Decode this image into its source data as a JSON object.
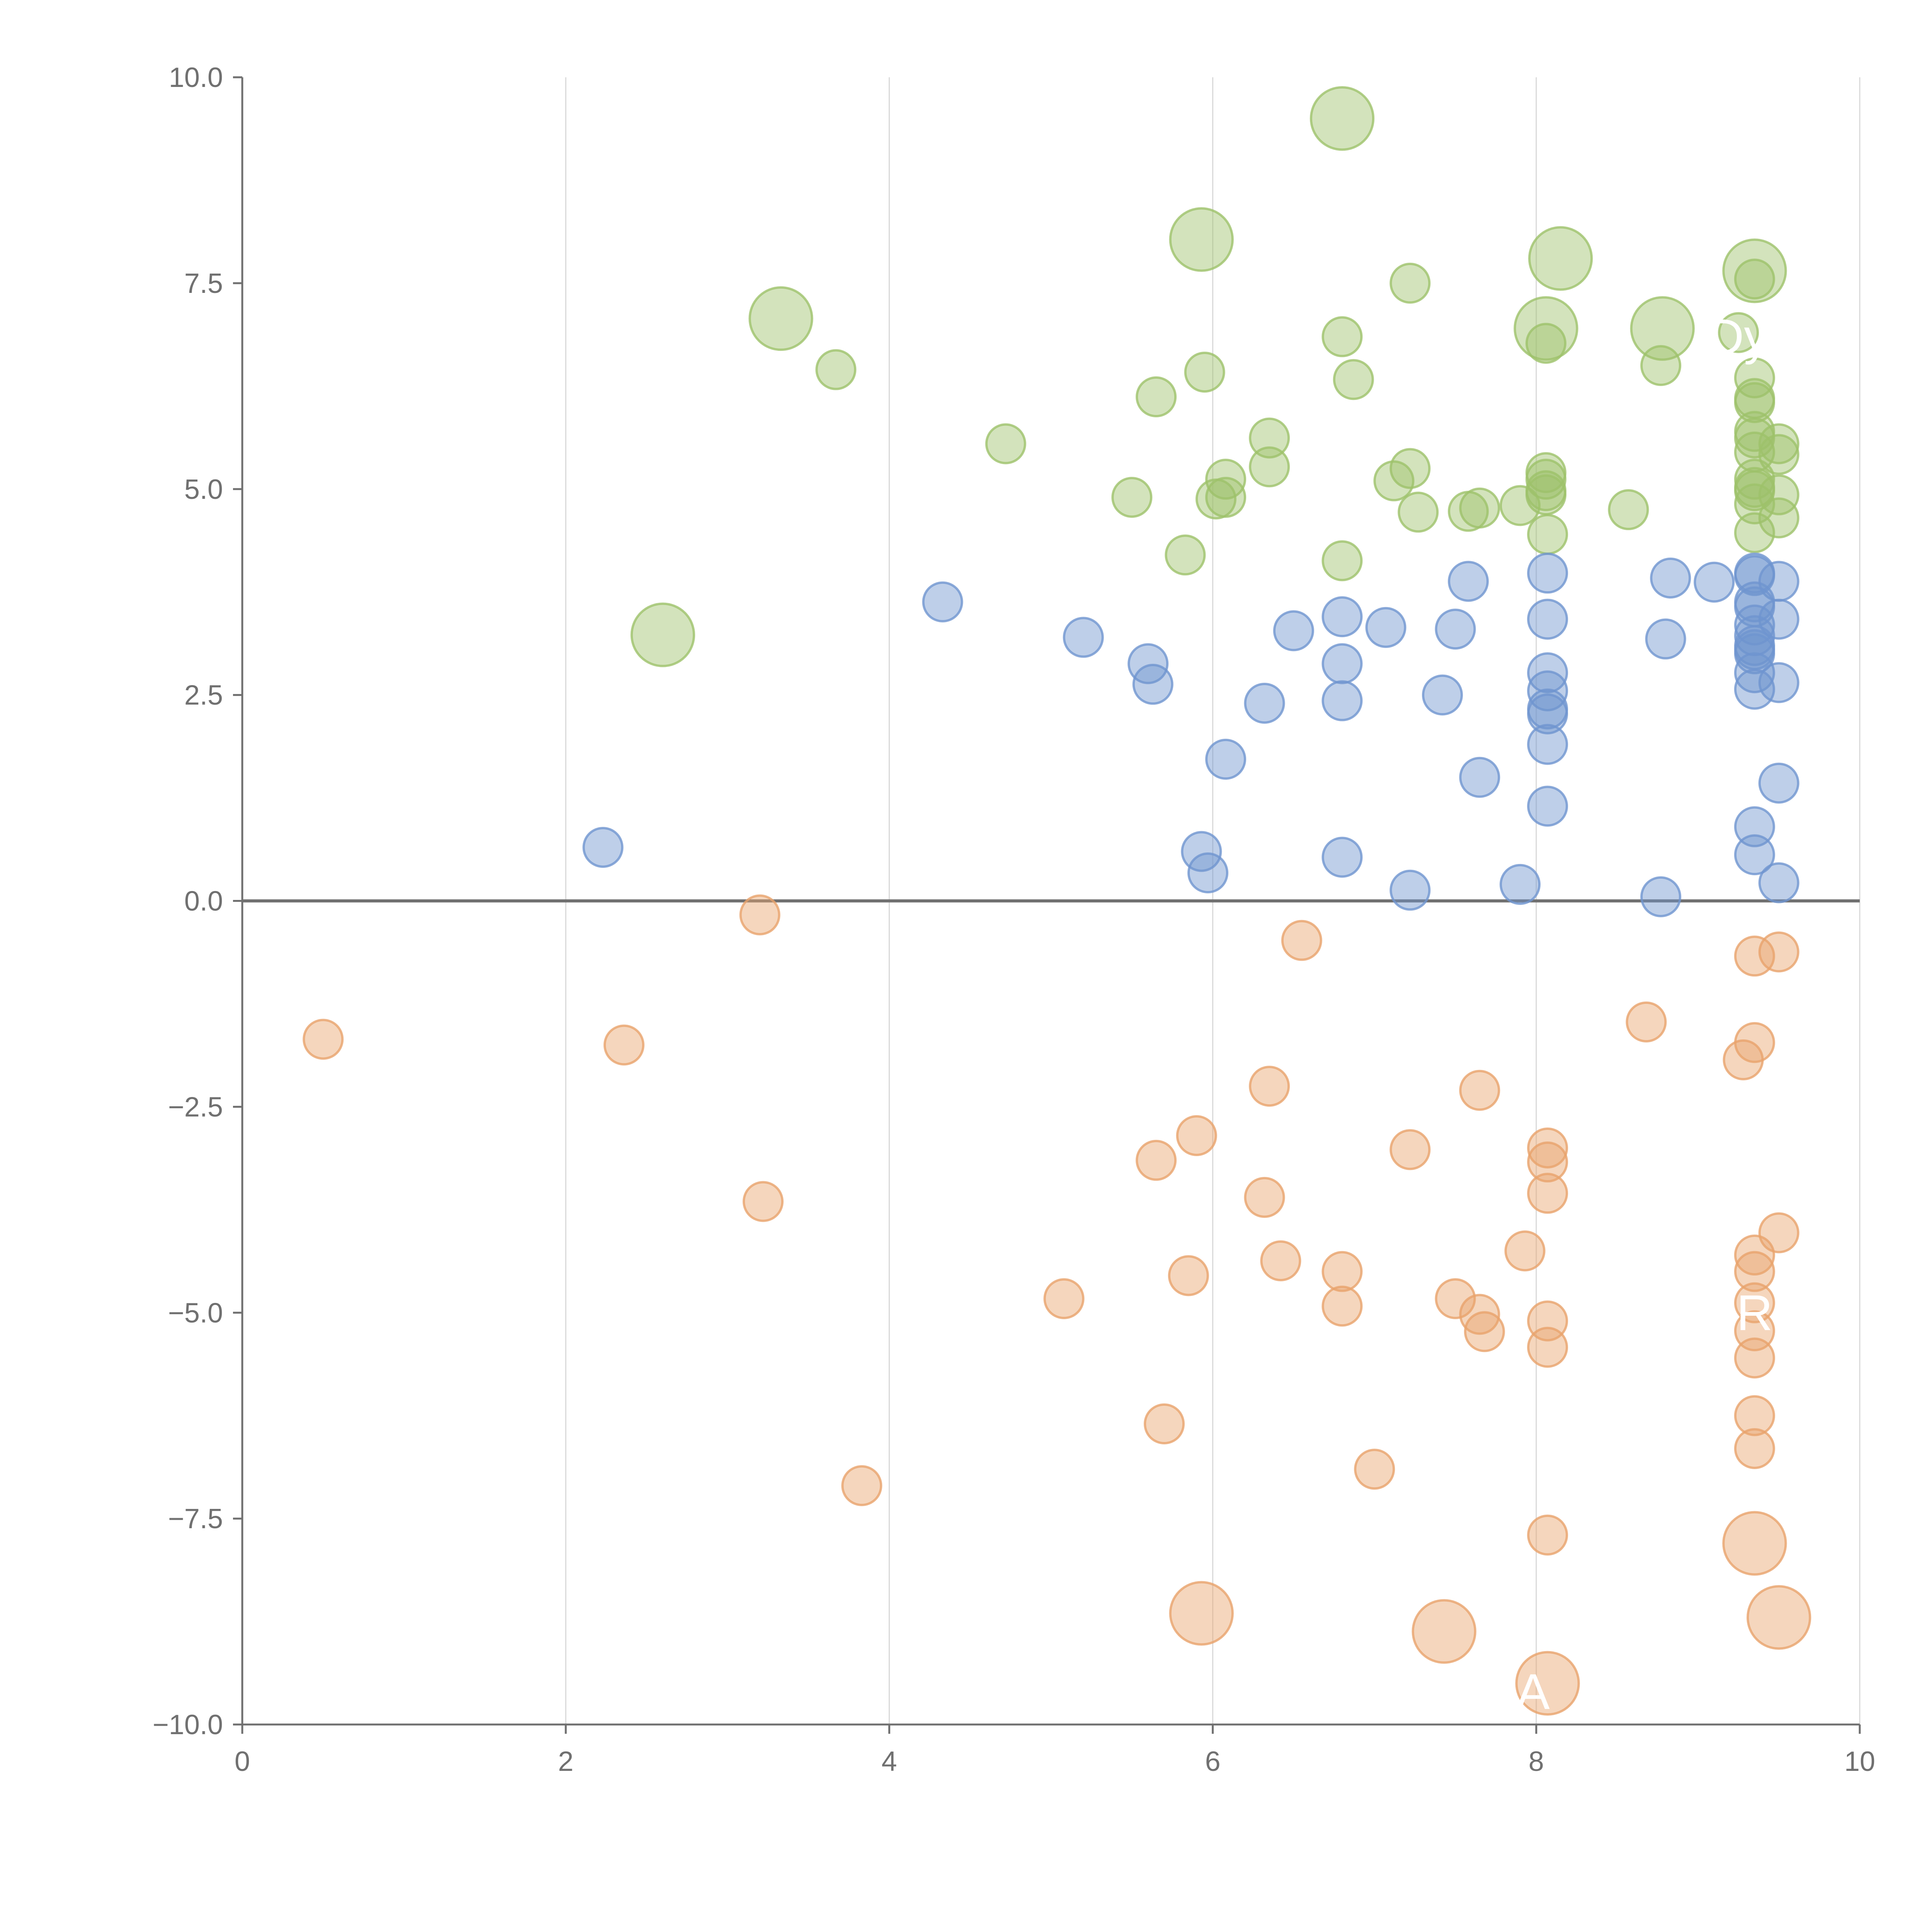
{
  "chart_data": {
    "type": "scatter",
    "title": "",
    "xlabel": "",
    "ylabel": "",
    "xlim": [
      0,
      10
    ],
    "ylim": [
      -10,
      10
    ],
    "grid": {
      "x": true,
      "y": false
    },
    "zero_line": 0,
    "x_ticks": [
      "0",
      "2",
      "4",
      "6",
      "8",
      "10"
    ],
    "x_tick_values": [
      0,
      2,
      4,
      6,
      8,
      10
    ],
    "y_ticks": [
      "10.0",
      "7.5",
      "5.0",
      "2.5",
      "0.0",
      "−2.5",
      "−5.0",
      "−7.5",
      "−10.0"
    ],
    "y_tick_values": [
      10,
      7.5,
      5,
      2.5,
      0,
      -2.5,
      -5,
      -7.5,
      -10
    ],
    "colors": {
      "green": "#9ec26a",
      "blue": "#6f95cf",
      "orange": "#e8a36c",
      "axis": "#707070",
      "grid": "#d9d9d9"
    },
    "series": [
      {
        "name": "green",
        "color": "#9ec26a",
        "points": [
          {
            "x": 6.8,
            "y": 9.5,
            "size": 2.6
          },
          {
            "x": 5.93,
            "y": 8.03,
            "size": 2.6
          },
          {
            "x": 8.15,
            "y": 7.8,
            "size": 2.6
          },
          {
            "x": 9.35,
            "y": 7.65,
            "size": 2.6
          },
          {
            "x": 3.33,
            "y": 7.07,
            "size": 2.6
          },
          {
            "x": 8.78,
            "y": 6.95,
            "size": 2.6
          },
          {
            "x": 8.06,
            "y": 6.95,
            "size": 2.6
          },
          {
            "x": 2.6,
            "y": 3.23,
            "size": 2.6
          },
          {
            "x": 7.22,
            "y": 7.5,
            "size": 1
          },
          {
            "x": 9.35,
            "y": 7.55,
            "size": 1
          },
          {
            "x": 6.8,
            "y": 6.85,
            "size": 1
          },
          {
            "x": 8.06,
            "y": 6.77,
            "size": 1
          },
          {
            "x": 9.25,
            "y": 6.9,
            "size": 1
          },
          {
            "x": 3.67,
            "y": 6.45,
            "size": 1
          },
          {
            "x": 5.95,
            "y": 6.42,
            "size": 1
          },
          {
            "x": 6.87,
            "y": 6.33,
            "size": 1
          },
          {
            "x": 8.77,
            "y": 6.5,
            "size": 1
          },
          {
            "x": 9.35,
            "y": 6.35,
            "size": 1
          },
          {
            "x": 5.65,
            "y": 6.12,
            "size": 1
          },
          {
            "x": 9.35,
            "y": 6.1,
            "size": 1
          },
          {
            "x": 9.35,
            "y": 6.05,
            "size": 1
          },
          {
            "x": 4.72,
            "y": 5.55,
            "size": 1
          },
          {
            "x": 6.35,
            "y": 5.62,
            "size": 1
          },
          {
            "x": 9.35,
            "y": 5.7,
            "size": 1
          },
          {
            "x": 9.35,
            "y": 5.62,
            "size": 1
          },
          {
            "x": 9.35,
            "y": 5.45,
            "size": 1
          },
          {
            "x": 9.5,
            "y": 5.55,
            "size": 1
          },
          {
            "x": 9.5,
            "y": 5.42,
            "size": 1
          },
          {
            "x": 6.35,
            "y": 5.27,
            "size": 1
          },
          {
            "x": 7.22,
            "y": 5.25,
            "size": 1
          },
          {
            "x": 6.08,
            "y": 5.12,
            "size": 1
          },
          {
            "x": 7.12,
            "y": 5.1,
            "size": 1
          },
          {
            "x": 8.06,
            "y": 5.2,
            "size": 1
          },
          {
            "x": 8.06,
            "y": 5.12,
            "size": 1
          },
          {
            "x": 9.35,
            "y": 5.12,
            "size": 1
          },
          {
            "x": 9.35,
            "y": 5.02,
            "size": 1
          },
          {
            "x": 9.35,
            "y": 4.98,
            "size": 1
          },
          {
            "x": 8.06,
            "y": 4.98,
            "size": 1
          },
          {
            "x": 8.06,
            "y": 4.93,
            "size": 1
          },
          {
            "x": 9.5,
            "y": 4.93,
            "size": 1
          },
          {
            "x": 5.5,
            "y": 4.9,
            "size": 1
          },
          {
            "x": 6.02,
            "y": 4.88,
            "size": 1
          },
          {
            "x": 6.08,
            "y": 4.9,
            "size": 1
          },
          {
            "x": 9.35,
            "y": 4.82,
            "size": 1
          },
          {
            "x": 7.9,
            "y": 4.8,
            "size": 1
          },
          {
            "x": 7.65,
            "y": 4.77,
            "size": 1
          },
          {
            "x": 7.58,
            "y": 4.73,
            "size": 1
          },
          {
            "x": 8.57,
            "y": 4.75,
            "size": 1
          },
          {
            "x": 7.27,
            "y": 4.72,
            "size": 1
          },
          {
            "x": 9.5,
            "y": 4.65,
            "size": 1
          },
          {
            "x": 8.07,
            "y": 4.45,
            "size": 1
          },
          {
            "x": 9.35,
            "y": 4.47,
            "size": 1
          },
          {
            "x": 5.83,
            "y": 4.2,
            "size": 1
          },
          {
            "x": 6.8,
            "y": 4.13,
            "size": 1
          }
        ]
      },
      {
        "name": "blue",
        "color": "#6f95cf",
        "points": [
          {
            "x": 8.07,
            "y": 3.98,
            "size": 1
          },
          {
            "x": 9.35,
            "y": 3.98,
            "size": 1
          },
          {
            "x": 9.35,
            "y": 3.95,
            "size": 1
          },
          {
            "x": 7.58,
            "y": 3.88,
            "size": 1
          },
          {
            "x": 8.83,
            "y": 3.92,
            "size": 1
          },
          {
            "x": 9.1,
            "y": 3.87,
            "size": 1
          },
          {
            "x": 9.5,
            "y": 3.88,
            "size": 1
          },
          {
            "x": 4.33,
            "y": 3.63,
            "size": 1
          },
          {
            "x": 9.35,
            "y": 3.63,
            "size": 1
          },
          {
            "x": 9.35,
            "y": 3.57,
            "size": 1
          },
          {
            "x": 6.8,
            "y": 3.45,
            "size": 1
          },
          {
            "x": 8.07,
            "y": 3.42,
            "size": 1
          },
          {
            "x": 9.5,
            "y": 3.42,
            "size": 1
          },
          {
            "x": 9.35,
            "y": 3.35,
            "size": 1
          },
          {
            "x": 6.5,
            "y": 3.28,
            "size": 1
          },
          {
            "x": 7.07,
            "y": 3.32,
            "size": 1
          },
          {
            "x": 7.5,
            "y": 3.3,
            "size": 1
          },
          {
            "x": 5.2,
            "y": 3.2,
            "size": 1
          },
          {
            "x": 8.8,
            "y": 3.18,
            "size": 1
          },
          {
            "x": 9.35,
            "y": 3.22,
            "size": 1
          },
          {
            "x": 9.35,
            "y": 3.1,
            "size": 1
          },
          {
            "x": 9.35,
            "y": 3.05,
            "size": 1
          },
          {
            "x": 9.35,
            "y": 3.0,
            "size": 1
          },
          {
            "x": 5.6,
            "y": 2.88,
            "size": 1
          },
          {
            "x": 6.8,
            "y": 2.88,
            "size": 1
          },
          {
            "x": 8.07,
            "y": 2.77,
            "size": 1
          },
          {
            "x": 9.35,
            "y": 2.77,
            "size": 1
          },
          {
            "x": 9.5,
            "y": 2.65,
            "size": 1
          },
          {
            "x": 5.63,
            "y": 2.63,
            "size": 1
          },
          {
            "x": 8.07,
            "y": 2.55,
            "size": 1
          },
          {
            "x": 9.35,
            "y": 2.57,
            "size": 1
          },
          {
            "x": 7.42,
            "y": 2.5,
            "size": 1
          },
          {
            "x": 6.8,
            "y": 2.43,
            "size": 1
          },
          {
            "x": 6.32,
            "y": 2.4,
            "size": 1
          },
          {
            "x": 8.07,
            "y": 2.33,
            "size": 1
          },
          {
            "x": 8.07,
            "y": 2.27,
            "size": 1
          },
          {
            "x": 8.07,
            "y": 1.9,
            "size": 1
          },
          {
            "x": 6.08,
            "y": 1.72,
            "size": 1
          },
          {
            "x": 7.65,
            "y": 1.5,
            "size": 1
          },
          {
            "x": 9.5,
            "y": 1.43,
            "size": 1
          },
          {
            "x": 8.07,
            "y": 1.15,
            "size": 1
          },
          {
            "x": 9.35,
            "y": 0.9,
            "size": 1
          },
          {
            "x": 2.23,
            "y": 0.65,
            "size": 1
          },
          {
            "x": 5.93,
            "y": 0.6,
            "size": 1
          },
          {
            "x": 9.35,
            "y": 0.56,
            "size": 1
          },
          {
            "x": 6.8,
            "y": 0.53,
            "size": 1
          },
          {
            "x": 5.97,
            "y": 0.34,
            "size": 1
          },
          {
            "x": 7.9,
            "y": 0.2,
            "size": 1
          },
          {
            "x": 9.5,
            "y": 0.22,
            "size": 1
          },
          {
            "x": 7.22,
            "y": 0.13,
            "size": 1
          },
          {
            "x": 8.77,
            "y": 0.05,
            "size": 1
          }
        ]
      },
      {
        "name": "orange",
        "color": "#e8a36c",
        "points": [
          {
            "x": 3.2,
            "y": -0.17,
            "size": 1
          },
          {
            "x": 6.55,
            "y": -0.48,
            "size": 1
          },
          {
            "x": 9.35,
            "y": -0.67,
            "size": 1
          },
          {
            "x": 9.5,
            "y": -0.62,
            "size": 1
          },
          {
            "x": 8.68,
            "y": -1.47,
            "size": 1
          },
          {
            "x": 0.5,
            "y": -1.68,
            "size": 1
          },
          {
            "x": 2.36,
            "y": -1.75,
            "size": 1
          },
          {
            "x": 9.35,
            "y": -1.72,
            "size": 1
          },
          {
            "x": 9.28,
            "y": -1.93,
            "size": 1
          },
          {
            "x": 6.35,
            "y": -2.25,
            "size": 1
          },
          {
            "x": 7.65,
            "y": -2.3,
            "size": 1
          },
          {
            "x": 5.9,
            "y": -2.85,
            "size": 1
          },
          {
            "x": 8.07,
            "y": -3.0,
            "size": 1
          },
          {
            "x": 7.22,
            "y": -3.02,
            "size": 1
          },
          {
            "x": 5.65,
            "y": -3.15,
            "size": 1
          },
          {
            "x": 8.07,
            "y": -3.17,
            "size": 1
          },
          {
            "x": 8.07,
            "y": -3.55,
            "size": 1
          },
          {
            "x": 6.32,
            "y": -3.6,
            "size": 1
          },
          {
            "x": 3.22,
            "y": -3.65,
            "size": 1
          },
          {
            "x": 9.5,
            "y": -4.03,
            "size": 1
          },
          {
            "x": 7.93,
            "y": -4.25,
            "size": 1
          },
          {
            "x": 9.35,
            "y": -4.3,
            "size": 1
          },
          {
            "x": 6.42,
            "y": -4.37,
            "size": 1
          },
          {
            "x": 6.8,
            "y": -4.5,
            "size": 1
          },
          {
            "x": 9.35,
            "y": -4.5,
            "size": 1
          },
          {
            "x": 5.85,
            "y": -4.55,
            "size": 1
          },
          {
            "x": 5.08,
            "y": -4.83,
            "size": 1
          },
          {
            "x": 7.5,
            "y": -4.83,
            "size": 1
          },
          {
            "x": 9.35,
            "y": -4.88,
            "size": 1
          },
          {
            "x": 6.8,
            "y": -4.92,
            "size": 1
          },
          {
            "x": 7.65,
            "y": -5.02,
            "size": 1
          },
          {
            "x": 8.07,
            "y": -5.1,
            "size": 1
          },
          {
            "x": 7.68,
            "y": -5.23,
            "size": 1
          },
          {
            "x": 9.35,
            "y": -5.22,
            "size": 1
          },
          {
            "x": 8.07,
            "y": -5.42,
            "size": 1
          },
          {
            "x": 9.35,
            "y": -5.55,
            "size": 1
          },
          {
            "x": 9.35,
            "y": -6.25,
            "size": 1
          },
          {
            "x": 5.7,
            "y": -6.35,
            "size": 1
          },
          {
            "x": 9.35,
            "y": -6.65,
            "size": 1
          },
          {
            "x": 7.0,
            "y": -6.9,
            "size": 1
          },
          {
            "x": 3.83,
            "y": -7.1,
            "size": 1
          },
          {
            "x": 8.07,
            "y": -7.7,
            "size": 1
          },
          {
            "x": 9.35,
            "y": -7.8,
            "size": 2.6
          },
          {
            "x": 5.93,
            "y": -8.65,
            "size": 2.6
          },
          {
            "x": 7.43,
            "y": -8.87,
            "size": 2.6
          },
          {
            "x": 9.5,
            "y": -8.7,
            "size": 2.6
          },
          {
            "x": 8.07,
            "y": -9.5,
            "size": 2.6
          }
        ]
      }
    ],
    "annotations": [
      {
        "text": "A",
        "x": 7.98,
        "y": -9.6
      },
      {
        "text": "R",
        "x": 9.35,
        "y": -5.0
      },
      {
        "text": "Dy",
        "x": 9.25,
        "y": 6.85
      }
    ]
  }
}
